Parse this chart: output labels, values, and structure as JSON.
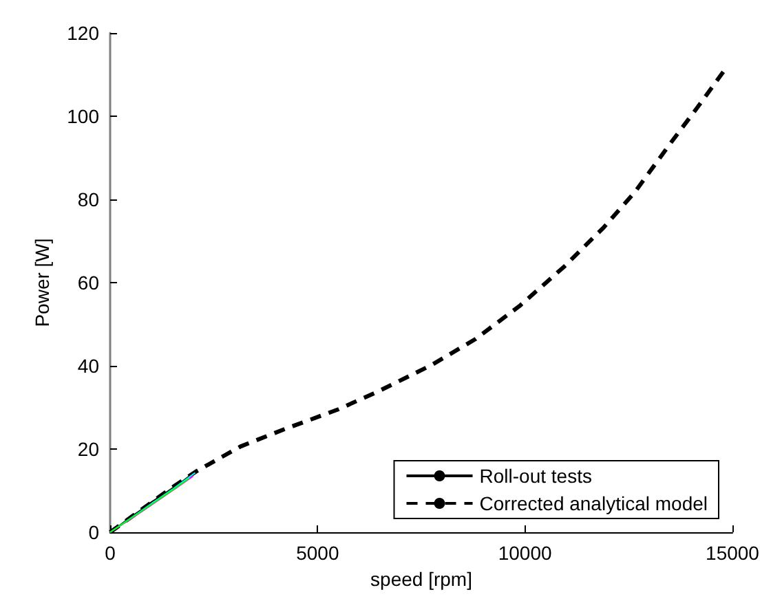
{
  "chart_data": {
    "type": "line",
    "xlabel": "speed [rpm]",
    "ylabel": "Power [W]",
    "xlim": [
      0,
      15000
    ],
    "xticks": [
      0,
      5000,
      10000,
      15000
    ],
    "ylim": [
      0,
      120
    ],
    "yticks": [
      0,
      20,
      40,
      60,
      80,
      100,
      120
    ],
    "grid": false,
    "legend": "bottom right",
    "marker": "none",
    "series": [
      {
        "name": "Roll-out tests",
        "color": "#000000",
        "line_style": "solid",
        "x": [
          0,
          250,
          500,
          750,
          1000,
          1250,
          1500,
          1750,
          2050
        ],
        "values": [
          0,
          1.8,
          3.7,
          5.4,
          7.3,
          8.9,
          10.6,
          12.3,
          14.6
        ]
      },
      {
        "color": "#ff00ff",
        "line_style": "solid",
        "x": [
          0,
          500,
          1000,
          1500,
          2000
        ],
        "values": [
          0,
          3.2,
          6.6,
          10.0,
          13.5
        ]
      },
      {
        "color": "#00ffff",
        "line_style": "solid",
        "x": [
          0,
          500,
          1000,
          1500,
          2050
        ],
        "values": [
          0,
          3.4,
          6.9,
          10.3,
          14.3
        ]
      },
      {
        "color": "#00ff00",
        "line_style": "solid",
        "x": [
          0,
          500,
          1000,
          1500,
          1900
        ],
        "values": [
          0,
          3.3,
          6.7,
          10.1,
          12.9
        ]
      },
      {
        "name": "Corrected analytical model",
        "color": "#000000",
        "line_style": "dashed",
        "x": [
          0,
          500,
          1000,
          1500,
          2070,
          2390,
          3140,
          4210,
          5490,
          6450,
          7730,
          8800,
          9870,
          10940,
          11900,
          12650,
          13500,
          14140,
          14790
        ],
        "values": [
          0,
          3.6,
          7.2,
          10.8,
          14.6,
          16.4,
          20.6,
          24.8,
          29.5,
          33.8,
          40.1,
          46.4,
          54.4,
          63.8,
          73.3,
          81.8,
          93.4,
          101.9,
          110.8
        ]
      }
    ]
  }
}
